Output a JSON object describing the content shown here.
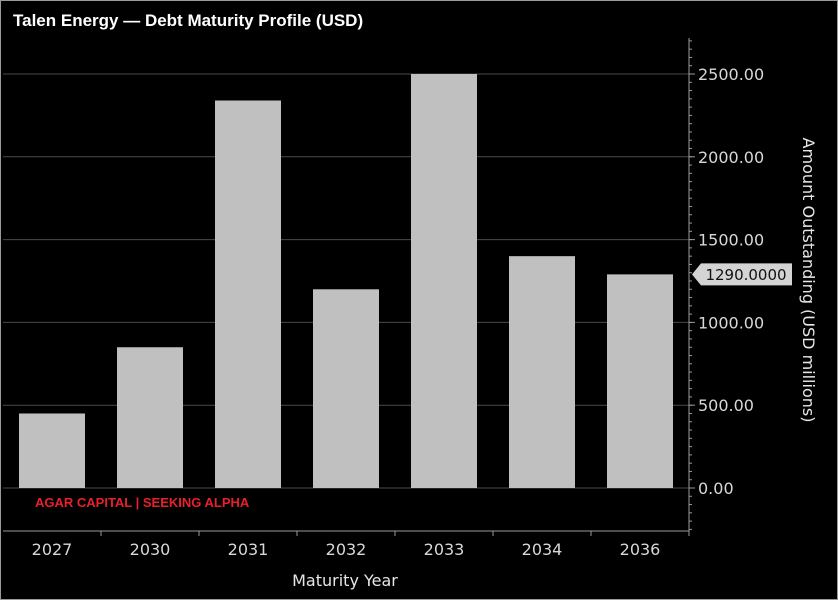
{
  "chart_data": {
    "type": "bar",
    "title": "Talen Energy — Debt Maturity Profile (USD)",
    "xlabel": "Maturity Year",
    "ylabel": "Amount Outstanding (USD millions)",
    "categories": [
      "2027",
      "2030",
      "2031",
      "2032",
      "2033",
      "2034",
      "2036"
    ],
    "values": [
      450,
      850,
      2340,
      1200,
      2500,
      1400,
      1290
    ],
    "y_ticks": [
      "0.00",
      "500.00",
      "1000.00",
      "1500.00",
      "2000.00",
      "2500.00"
    ],
    "ylim": [
      -250,
      2710
    ],
    "y_axis_side": "right",
    "grid": true,
    "legend": "none",
    "last_value_label": "1290.0000",
    "watermark": "AGAR CAPITAL | SEEKING ALPHA",
    "colors": {
      "background": "#000000",
      "bar": "#c0c0c0",
      "grid": "#4a4a4a",
      "axis": "#9a9a9a",
      "text": "#d8d8d8",
      "watermark": "#e8202a",
      "callout": "#d4d4d4"
    }
  }
}
